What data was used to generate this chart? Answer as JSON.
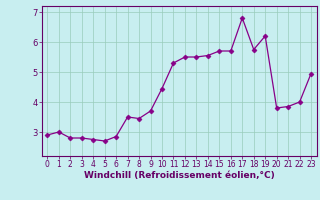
{
  "x": [
    0,
    1,
    2,
    3,
    4,
    5,
    6,
    7,
    8,
    9,
    10,
    11,
    12,
    13,
    14,
    15,
    16,
    17,
    18,
    19,
    20,
    21,
    22,
    23
  ],
  "y": [
    2.9,
    3.0,
    2.8,
    2.8,
    2.75,
    2.7,
    2.85,
    3.5,
    3.45,
    3.7,
    4.45,
    5.3,
    5.5,
    5.5,
    5.55,
    5.7,
    5.7,
    6.8,
    5.75,
    6.2,
    3.8,
    3.85,
    4.0,
    4.95
  ],
  "line_color": "#880088",
  "marker": "D",
  "markersize": 2.5,
  "linewidth": 0.9,
  "bg_color": "#c8eef0",
  "grid_color": "#99ccbb",
  "xlabel": "Windchill (Refroidissement éolien,°C)",
  "xlabel_fontsize": 6.5,
  "tick_fontsize": 5.5,
  "ylim": [
    2.2,
    7.2
  ],
  "xlim": [
    -0.5,
    23.5
  ],
  "yticks": [
    3,
    4,
    5,
    6
  ],
  "ytick_extra": 7
}
